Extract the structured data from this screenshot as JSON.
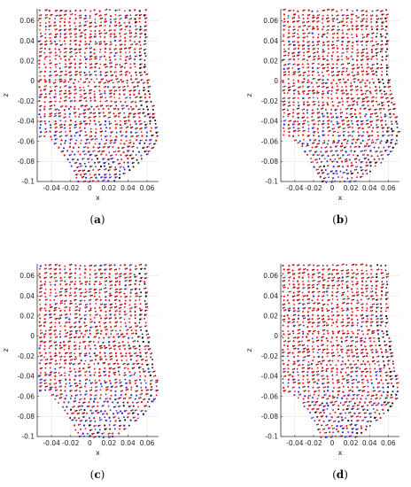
{
  "figure": {
    "panels": [
      {
        "label": "a",
        "caption_open": "(",
        "caption_close": ")"
      },
      {
        "label": "b",
        "caption_open": "(",
        "caption_close": ")"
      },
      {
        "label": "c",
        "caption_open": "(",
        "caption_close": ")"
      },
      {
        "label": "d",
        "caption_open": "(",
        "caption_close": ")"
      }
    ]
  },
  "chart_data": [
    {
      "type": "scatter",
      "xlabel": "x",
      "ylabel": "z",
      "xlim": [
        -0.055,
        0.072
      ],
      "ylim": [
        -0.1,
        0.072
      ],
      "xticks": [
        "-0.04",
        "-0.02",
        "0",
        "0.02",
        "0.04",
        "0.06"
      ],
      "xtick_values": [
        -0.04,
        -0.02,
        0,
        0.02,
        0.04,
        0.06
      ],
      "yticks": [
        "0.06",
        "0.04",
        "0.02",
        "0",
        "-0.02",
        "-0.04",
        "-0.06",
        "-0.08",
        "-0.1"
      ],
      "ytick_values": [
        0.06,
        0.04,
        0.02,
        0,
        -0.02,
        -0.04,
        -0.06,
        -0.08,
        -0.1
      ],
      "grid": true,
      "series_colors": [
        "#e8141c",
        "#1f2fd0",
        "#111111"
      ],
      "variant": 1
    },
    {
      "type": "scatter",
      "xlabel": "x",
      "ylabel": "z",
      "xlim": [
        -0.055,
        0.072
      ],
      "ylim": [
        -0.1,
        0.072
      ],
      "xticks": [
        "-0.04",
        "-0.02",
        "0",
        "0.02",
        "0.04",
        "0.06"
      ],
      "xtick_values": [
        -0.04,
        -0.02,
        0,
        0.02,
        0.04,
        0.06
      ],
      "yticks": [
        "0.06",
        "0.04",
        "0.02",
        "0",
        "-0.02",
        "-0.04",
        "-0.06",
        "-0.08",
        "-0.1"
      ],
      "ytick_values": [
        0.06,
        0.04,
        0.02,
        0,
        -0.02,
        -0.04,
        -0.06,
        -0.08,
        -0.1
      ],
      "grid": true,
      "series_colors": [
        "#e8141c",
        "#1f2fd0",
        "#111111"
      ],
      "variant": 2
    },
    {
      "type": "scatter",
      "xlabel": "x",
      "ylabel": "z",
      "xlim": [
        -0.055,
        0.072
      ],
      "ylim": [
        -0.1,
        0.072
      ],
      "xticks": [
        "-0.04",
        "-0.02",
        "0",
        "0.02",
        "0.04",
        "0.06"
      ],
      "xtick_values": [
        -0.04,
        -0.02,
        0,
        0.02,
        0.04,
        0.06
      ],
      "yticks": [
        "0.06",
        "0.04",
        "0.02",
        "0",
        "-0.02",
        "-0.04",
        "-0.06",
        "-0.08",
        "-0.1"
      ],
      "ytick_values": [
        0.06,
        0.04,
        0.02,
        0,
        -0.02,
        -0.04,
        -0.06,
        -0.08,
        -0.1
      ],
      "grid": true,
      "series_colors": [
        "#e8141c",
        "#1f2fd0",
        "#111111"
      ],
      "variant": 3
    },
    {
      "type": "scatter",
      "xlabel": "x",
      "ylabel": "z",
      "xlim": [
        -0.055,
        0.072
      ],
      "ylim": [
        -0.1,
        0.072
      ],
      "xticks": [
        "-0.04",
        "-0.02",
        "0",
        "0.02",
        "0.04",
        "0.06"
      ],
      "xtick_values": [
        -0.04,
        -0.02,
        0,
        0.02,
        0.04,
        0.06
      ],
      "yticks": [
        "0.06",
        "0.04",
        "0.02",
        "0",
        "-0.02",
        "-0.04",
        "-0.06",
        "-0.08",
        "-0.1"
      ],
      "ytick_values": [
        0.06,
        0.04,
        0.02,
        0,
        -0.02,
        -0.04,
        -0.06,
        -0.08,
        -0.1
      ],
      "grid": true,
      "series_colors": [
        "#e8141c",
        "#1f2fd0",
        "#111111"
      ],
      "variant": 4
    }
  ]
}
